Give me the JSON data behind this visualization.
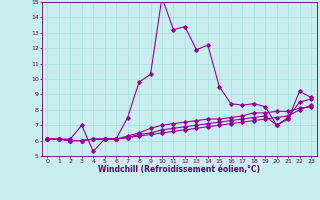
{
  "xlabel": "Windchill (Refroidissement éolien,°C)",
  "bg_color": "#c8eef0",
  "grid_color": "#aadddd",
  "line_color": "#990099",
  "xlim": [
    -0.5,
    23.5
  ],
  "ylim": [
    5,
    15
  ],
  "xticks": [
    0,
    1,
    2,
    3,
    4,
    5,
    6,
    7,
    8,
    9,
    10,
    11,
    12,
    13,
    14,
    15,
    16,
    17,
    18,
    19,
    20,
    21,
    22,
    23
  ],
  "yticks": [
    5,
    6,
    7,
    8,
    9,
    10,
    11,
    12,
    13,
    14,
    15
  ],
  "line1_x": [
    0,
    1,
    2,
    3,
    4,
    5,
    6,
    7,
    8,
    9,
    10,
    11,
    12,
    13,
    14,
    15,
    16,
    17,
    18,
    19,
    20,
    21,
    22,
    23
  ],
  "line1_y": [
    6.1,
    6.1,
    6.1,
    7.0,
    5.3,
    6.1,
    6.1,
    7.5,
    9.8,
    10.3,
    15.3,
    13.2,
    13.4,
    11.9,
    12.2,
    9.5,
    8.4,
    8.3,
    8.4,
    8.2,
    7.0,
    7.4,
    9.2,
    8.8
  ],
  "line2_x": [
    0,
    1,
    2,
    3,
    4,
    5,
    6,
    7,
    8,
    9,
    10,
    11,
    12,
    13,
    14,
    15,
    16,
    17,
    18,
    19,
    20,
    21,
    22,
    23
  ],
  "line2_y": [
    6.1,
    6.1,
    6.0,
    6.0,
    6.1,
    6.1,
    6.1,
    6.3,
    6.5,
    6.8,
    7.0,
    7.1,
    7.2,
    7.3,
    7.4,
    7.4,
    7.5,
    7.6,
    7.8,
    7.8,
    7.9,
    7.9,
    8.1,
    8.2
  ],
  "line3_x": [
    0,
    1,
    2,
    3,
    4,
    5,
    6,
    7,
    8,
    9,
    10,
    11,
    12,
    13,
    14,
    15,
    16,
    17,
    18,
    19,
    20,
    21,
    22,
    23
  ],
  "line3_y": [
    6.1,
    6.1,
    6.0,
    6.0,
    6.1,
    6.1,
    6.1,
    6.2,
    6.4,
    6.5,
    6.7,
    6.8,
    6.9,
    7.0,
    7.1,
    7.2,
    7.3,
    7.4,
    7.5,
    7.6,
    7.0,
    7.5,
    8.5,
    8.7
  ],
  "line4_x": [
    0,
    1,
    2,
    3,
    4,
    5,
    6,
    7,
    8,
    9,
    10,
    11,
    12,
    13,
    14,
    15,
    16,
    17,
    18,
    19,
    20,
    21,
    22,
    23
  ],
  "line4_y": [
    6.1,
    6.1,
    6.0,
    6.0,
    6.1,
    6.1,
    6.1,
    6.2,
    6.3,
    6.4,
    6.5,
    6.6,
    6.7,
    6.8,
    6.9,
    7.0,
    7.1,
    7.2,
    7.3,
    7.4,
    7.5,
    7.6,
    8.0,
    8.3
  ],
  "marker_size": 1.8,
  "linewidth": 0.8,
  "tick_fontsize": 4.5,
  "label_fontsize": 5.5
}
